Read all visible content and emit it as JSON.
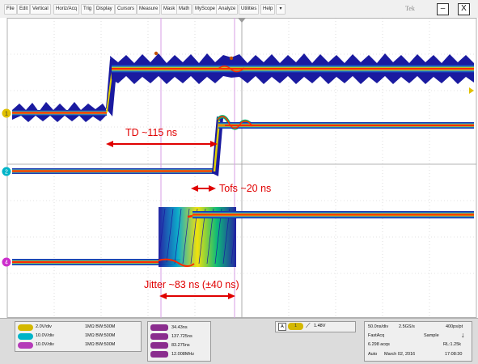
{
  "menu": {
    "items": [
      "File",
      "Edit",
      "Vertical",
      "Horiz/Acq",
      "Trig",
      "Display",
      "Cursors",
      "Measure",
      "Mask",
      "Math",
      "MyScope",
      "Analyze",
      "Utilities",
      "Help"
    ],
    "dropdown_icon": "down-triangle-icon",
    "brand": "Tek",
    "minimize": "–",
    "close": "X"
  },
  "waveforms": {
    "colors": {
      "ch1": "#e0c000",
      "ch2": "#00b4c8",
      "ch4": "#cc2ecc",
      "persistence_hot": "#ff2a00",
      "persistence_cool": "#1a1aa0"
    },
    "markers": {
      "ch1": "1",
      "ch2": "2",
      "ch4": "4"
    }
  },
  "annotations": {
    "td": "TD ~115 ns",
    "tofs": "Tofs ~20 ns",
    "jitter": "Jitter ~83 ns (±40 ns)"
  },
  "channels": [
    {
      "id": "1",
      "scale": "2.0V/div",
      "impedance": "1MΩ",
      "bw": "BW:500M",
      "color": "#d4b800"
    },
    {
      "id": "2",
      "scale": "10.0V/div",
      "impedance": "1MΩ",
      "bw": "BW:500M",
      "color": "#00b4c8"
    },
    {
      "id": "4",
      "scale": "10.0V/div",
      "impedance": "1MΩ",
      "bw": "BW:500M",
      "color": "#b53bb8"
    }
  ],
  "measurements": [
    "34.43ns",
    "137.725ns",
    "83.275ns",
    "12.008MHz"
  ],
  "trigger": {
    "source": "A",
    "channel": "1",
    "slope_icon": "rising-edge-icon",
    "level": "1.48V"
  },
  "acquisition": {
    "timebase": "50.0ns/div",
    "sample_rate": "2.5GS/s",
    "resolution": "400ps/pt",
    "mode": "FastAcq",
    "sampling": "Sample",
    "acqs": "6.298 acqs",
    "record_length": "RL:1.25k",
    "run_mode": "Auto",
    "date": "March 02, 2016",
    "time": "17:08:30"
  }
}
